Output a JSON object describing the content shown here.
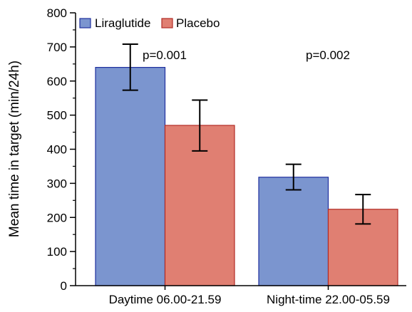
{
  "chart_data": {
    "type": "bar",
    "title": "",
    "xlabel": "",
    "ylabel": "Mean time in target (min/24h)",
    "ylim": [
      0,
      800
    ],
    "yticks": [
      0,
      100,
      200,
      300,
      400,
      500,
      600,
      700,
      800
    ],
    "yminor_step": 50,
    "categories": [
      "Daytime 06.00-21.59",
      "Night-time 22.00-05.59"
    ],
    "series": [
      {
        "name": "Liraglutide",
        "color": "#7b95cf",
        "edge_color": "#1f2f9e",
        "values": [
          640,
          318
        ],
        "err_low": [
          573,
          281
        ],
        "err_high": [
          708,
          356
        ]
      },
      {
        "name": "Placebo",
        "color": "#e07f72",
        "edge_color": "#b22c26",
        "values": [
          470,
          224
        ],
        "err_low": [
          395,
          181
        ],
        "err_high": [
          544,
          267
        ]
      }
    ],
    "annotations": [
      "p=0.001",
      "p=0.002"
    ],
    "legend": "top-left",
    "grid": false
  }
}
